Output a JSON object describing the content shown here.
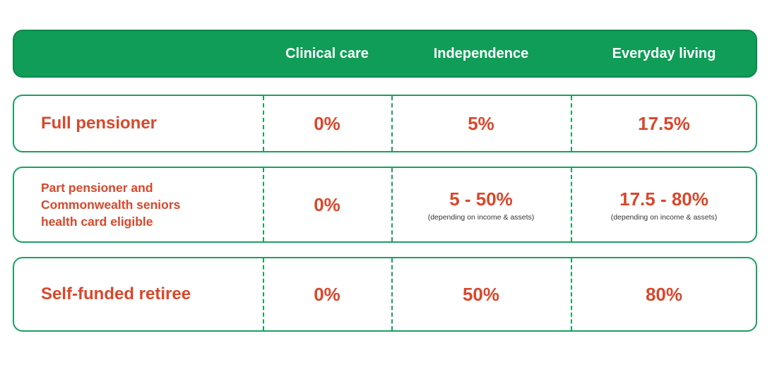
{
  "header": {
    "columns": [
      "",
      "Clinical care",
      "Independence",
      "Everyday living"
    ]
  },
  "rows": [
    {
      "label": "Full pensioner",
      "clinical_care": "0%",
      "independence": "5%",
      "independence_note": "",
      "everyday_living": "17.5%",
      "everyday_living_note": ""
    },
    {
      "label": "Part pensioner and Commonwealth seniors health card eligible",
      "clinical_care": "0%",
      "independence": "5 - 50%",
      "independence_note": "(depending on income & assets)",
      "everyday_living": "17.5 - 80%",
      "everyday_living_note": "(depending on income & assets)"
    },
    {
      "label": "Self-funded retiree",
      "clinical_care": "0%",
      "independence": "50%",
      "independence_note": "",
      "everyday_living": "80%",
      "everyday_living_note": ""
    }
  ],
  "colors": {
    "header_bg": "#0f9d58",
    "border": "#1aa063",
    "value_text": "#d9472b"
  }
}
